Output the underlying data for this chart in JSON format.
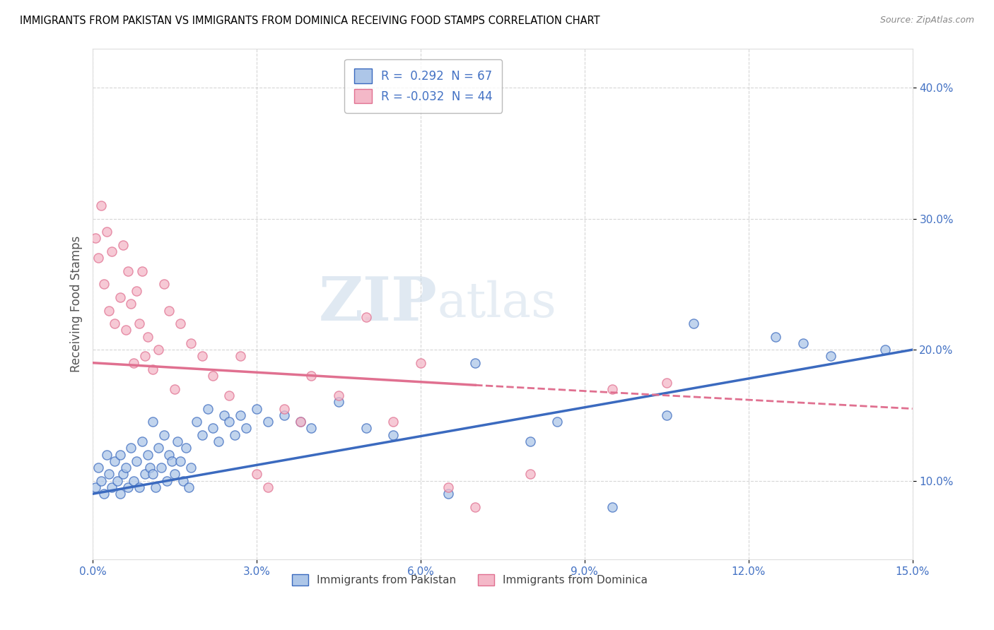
{
  "title": "IMMIGRANTS FROM PAKISTAN VS IMMIGRANTS FROM DOMINICA RECEIVING FOOD STAMPS CORRELATION CHART",
  "source": "Source: ZipAtlas.com",
  "ylabel": "Receiving Food Stamps",
  "xlabel": "",
  "x_min": 0.0,
  "x_max": 15.0,
  "y_min": 4.0,
  "y_max": 43.0,
  "x_ticks": [
    0.0,
    3.0,
    6.0,
    9.0,
    12.0,
    15.0
  ],
  "x_tick_labels": [
    "0.0%",
    "3.0%",
    "6.0%",
    "9.0%",
    "12.0%",
    "15.0%"
  ],
  "y_ticks": [
    10.0,
    20.0,
    30.0,
    40.0
  ],
  "y_tick_labels": [
    "10.0%",
    "20.0%",
    "30.0%",
    "40.0%"
  ],
  "pakistan_color": "#adc6e8",
  "dominica_color": "#f4b8c8",
  "pakistan_line_color": "#3b6abf",
  "dominica_line_color": "#e07090",
  "pakistan_R": 0.292,
  "pakistan_N": 67,
  "dominica_R": -0.032,
  "dominica_N": 44,
  "pakistan_x": [
    0.05,
    0.1,
    0.15,
    0.2,
    0.25,
    0.3,
    0.35,
    0.4,
    0.45,
    0.5,
    0.5,
    0.55,
    0.6,
    0.65,
    0.7,
    0.75,
    0.8,
    0.85,
    0.9,
    0.95,
    1.0,
    1.05,
    1.1,
    1.1,
    1.15,
    1.2,
    1.25,
    1.3,
    1.35,
    1.4,
    1.45,
    1.5,
    1.55,
    1.6,
    1.65,
    1.7,
    1.75,
    1.8,
    1.9,
    2.0,
    2.1,
    2.2,
    2.3,
    2.4,
    2.5,
    2.6,
    2.7,
    2.8,
    3.0,
    3.2,
    3.5,
    3.8,
    4.0,
    4.5,
    5.0,
    5.5,
    6.5,
    7.0,
    8.0,
    8.5,
    9.5,
    10.5,
    11.0,
    12.5,
    13.0,
    13.5,
    14.5
  ],
  "pakistan_y": [
    9.5,
    11.0,
    10.0,
    9.0,
    12.0,
    10.5,
    9.5,
    11.5,
    10.0,
    9.0,
    12.0,
    10.5,
    11.0,
    9.5,
    12.5,
    10.0,
    11.5,
    9.5,
    13.0,
    10.5,
    12.0,
    11.0,
    10.5,
    14.5,
    9.5,
    12.5,
    11.0,
    13.5,
    10.0,
    12.0,
    11.5,
    10.5,
    13.0,
    11.5,
    10.0,
    12.5,
    9.5,
    11.0,
    14.5,
    13.5,
    15.5,
    14.0,
    13.0,
    15.0,
    14.5,
    13.5,
    15.0,
    14.0,
    15.5,
    14.5,
    15.0,
    14.5,
    14.0,
    16.0,
    14.0,
    13.5,
    9.0,
    19.0,
    13.0,
    14.5,
    8.0,
    15.0,
    22.0,
    21.0,
    20.5,
    19.5,
    20.0
  ],
  "dominica_x": [
    0.05,
    0.1,
    0.15,
    0.2,
    0.25,
    0.3,
    0.35,
    0.4,
    0.5,
    0.55,
    0.6,
    0.65,
    0.7,
    0.75,
    0.8,
    0.85,
    0.9,
    0.95,
    1.0,
    1.1,
    1.2,
    1.3,
    1.4,
    1.5,
    1.6,
    1.8,
    2.0,
    2.2,
    2.5,
    2.7,
    3.0,
    3.2,
    3.5,
    3.8,
    4.5,
    5.5,
    6.5,
    8.0,
    9.5,
    10.5,
    5.0,
    6.0,
    7.0,
    4.0
  ],
  "dominica_y": [
    28.5,
    27.0,
    31.0,
    25.0,
    29.0,
    23.0,
    27.5,
    22.0,
    24.0,
    28.0,
    21.5,
    26.0,
    23.5,
    19.0,
    24.5,
    22.0,
    26.0,
    19.5,
    21.0,
    18.5,
    20.0,
    25.0,
    23.0,
    17.0,
    22.0,
    20.5,
    19.5,
    18.0,
    16.5,
    19.5,
    10.5,
    9.5,
    15.5,
    14.5,
    16.5,
    14.5,
    9.5,
    10.5,
    17.0,
    17.5,
    22.5,
    19.0,
    8.0,
    18.0
  ],
  "pakistan_size_base": 90,
  "dominica_size_base": 90,
  "pakistan_trendline_x0": 0.0,
  "pakistan_trendline_y0": 9.0,
  "pakistan_trendline_x1": 15.0,
  "pakistan_trendline_y1": 20.0,
  "dominica_solid_x0": 0.0,
  "dominica_solid_y0": 19.0,
  "dominica_solid_x1": 7.0,
  "dominica_solid_y1": 17.3,
  "dominica_dashed_x0": 7.0,
  "dominica_dashed_y0": 17.3,
  "dominica_dashed_x1": 15.0,
  "dominica_dashed_y1": 15.5,
  "watermark_zip": "ZIP",
  "watermark_atlas": "atlas",
  "background_color": "#ffffff",
  "grid_color": "#cccccc",
  "title_color": "#000000",
  "axis_label_color": "#555555",
  "tick_color": "#4472c4"
}
